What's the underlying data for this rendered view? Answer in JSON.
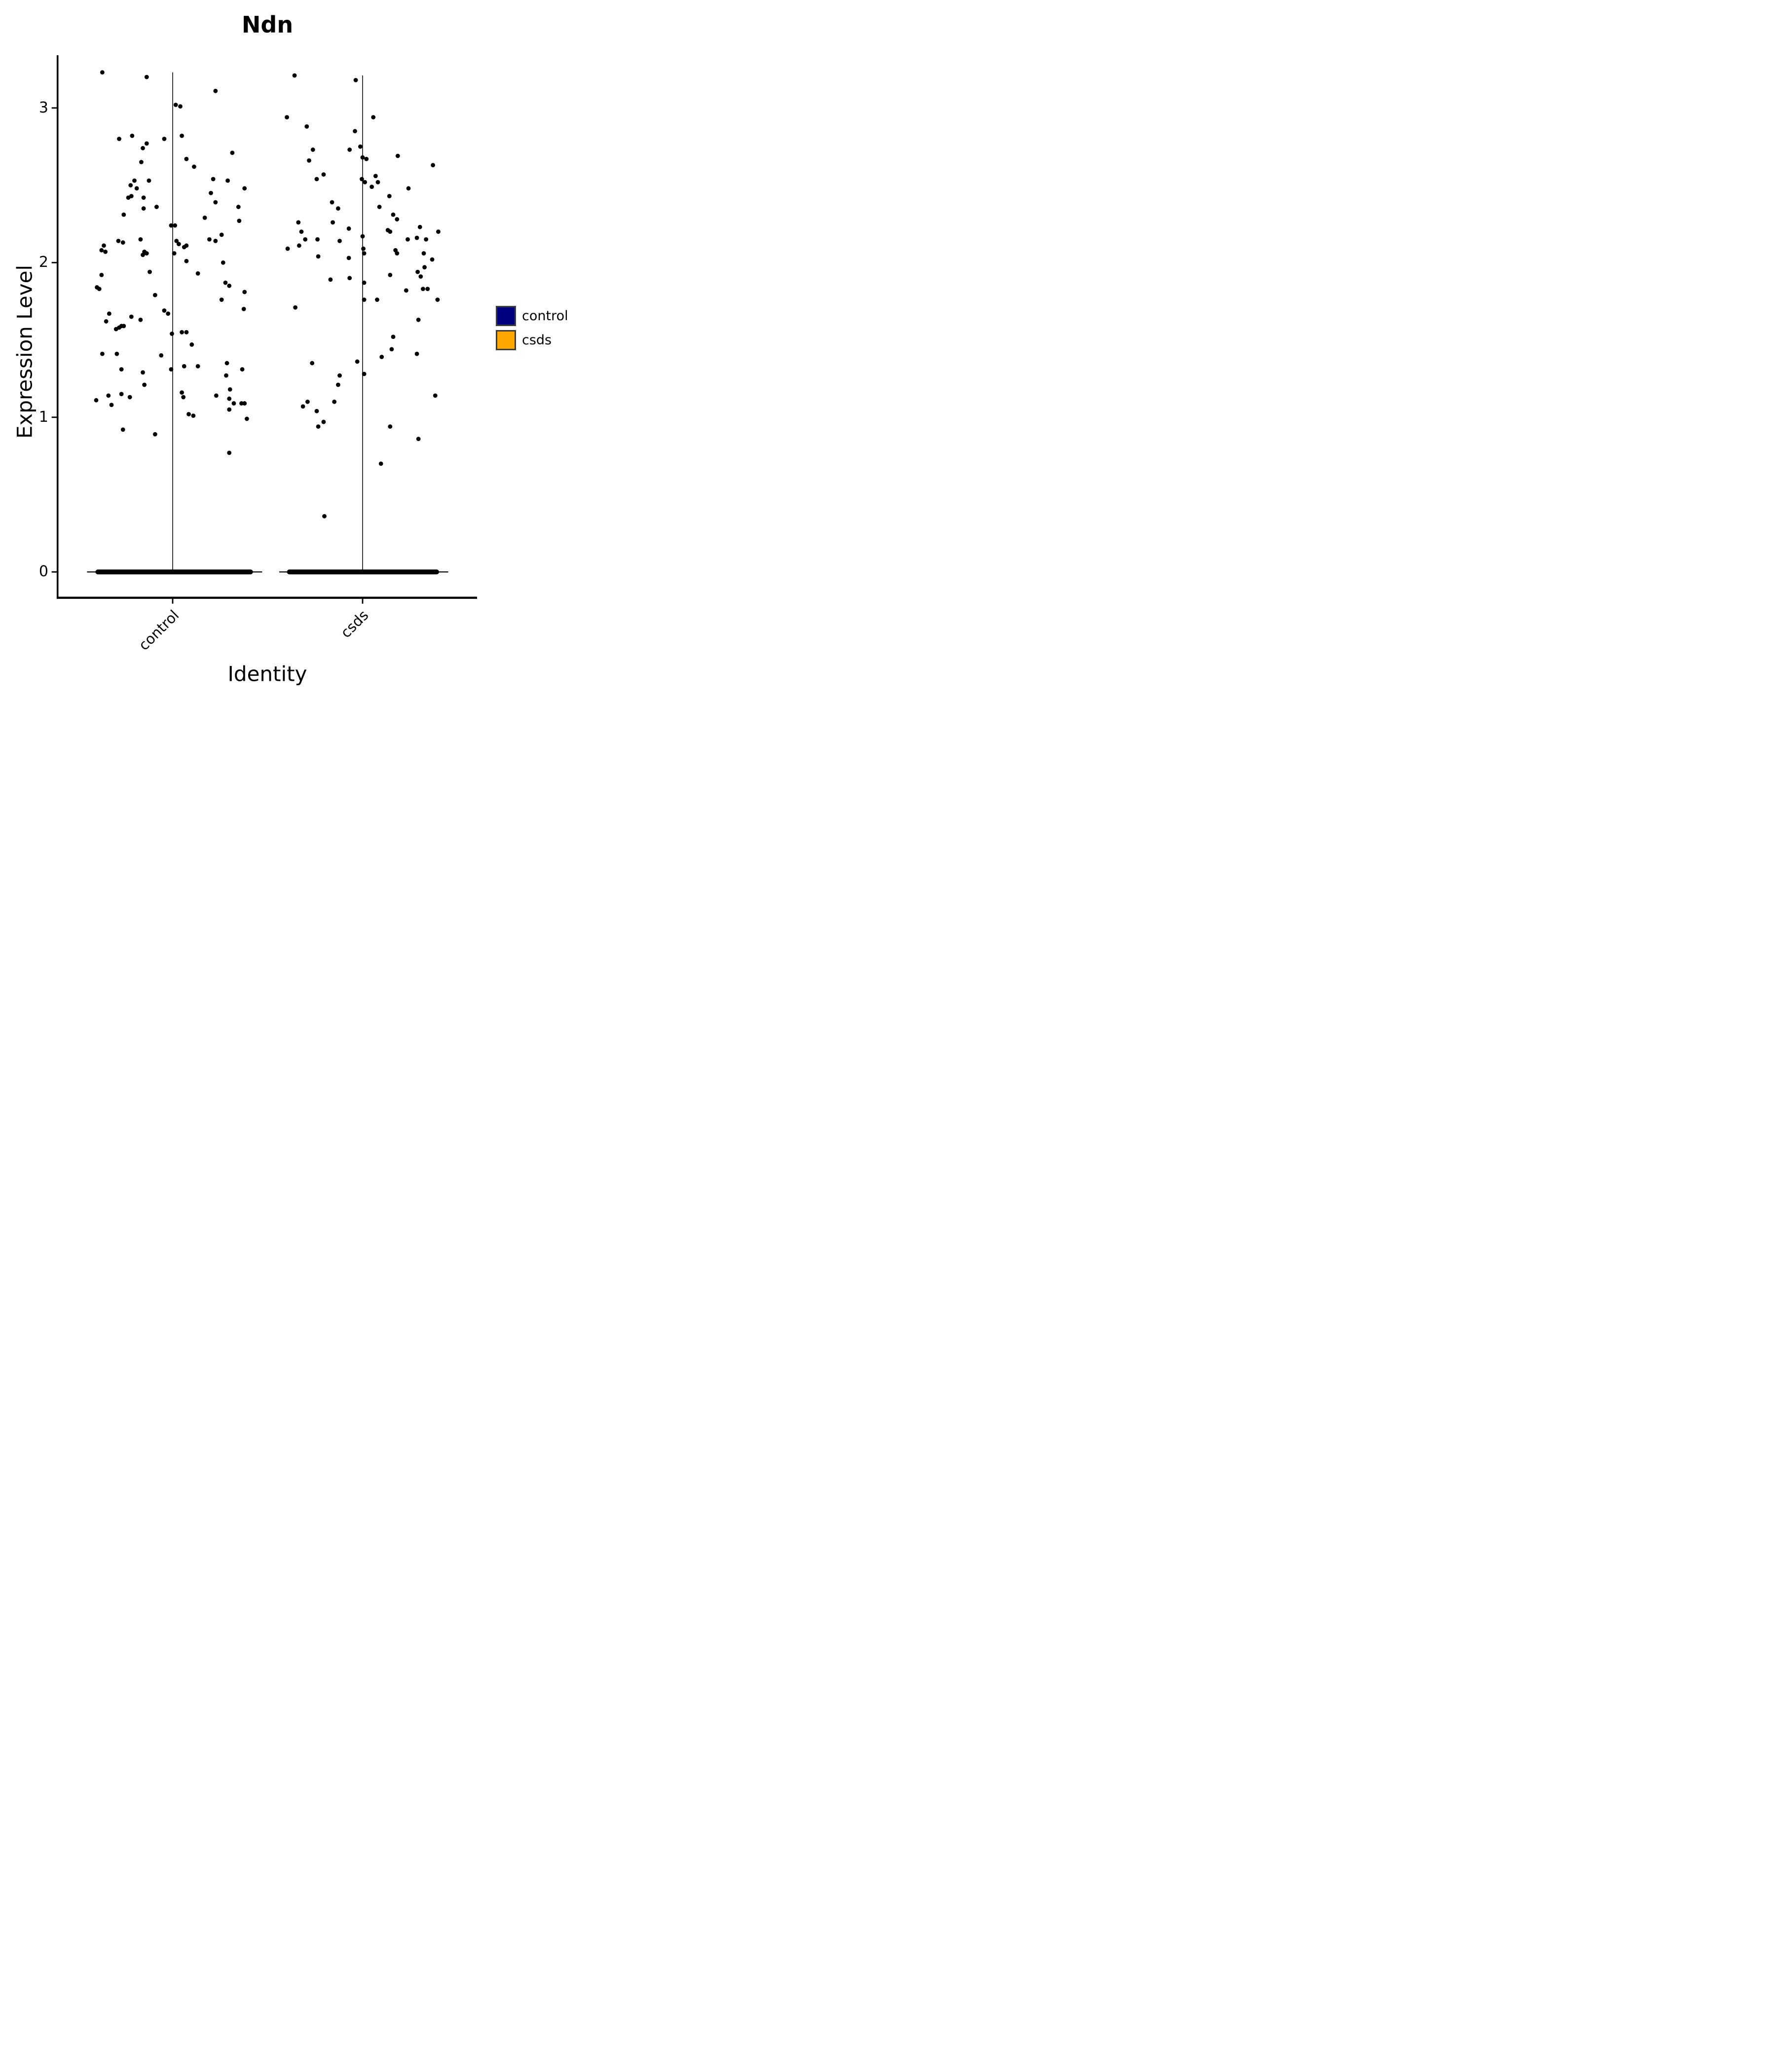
{
  "title": "Ndn",
  "y_axis": {
    "label": "Expression Level",
    "tick_labels": [
      "0",
      "1",
      "2",
      "3"
    ]
  },
  "x_axis": {
    "label": "Identity",
    "category_labels": [
      "control",
      "csds"
    ]
  },
  "legend": {
    "position": "right"
  },
  "chart_data": {
    "type": "scatter",
    "subtype": "violin-jitter",
    "title": "Ndn",
    "xlabel": "Identity",
    "ylabel": "Expression Level",
    "categories": [
      "control",
      "csds"
    ],
    "yticks": [
      0,
      1,
      2,
      3
    ],
    "ylim": [
      -0.17,
      3.45
    ],
    "grid": false,
    "point_color": "#000000",
    "legend": {
      "position": "right",
      "entries": [
        {
          "label": "control",
          "color": "#000080"
        },
        {
          "label": "csds",
          "color": "#FFA500"
        }
      ]
    },
    "series": [
      {
        "name": "control",
        "stem_top": 3.23,
        "zero_band": {
          "value": 0,
          "band_extent": [
            -1.01,
            1.05
          ],
          "line_extent": [
            -1.12,
            1.17
          ]
        },
        "points": [
          [
            -0.92,
            3.23
          ],
          [
            -0.34,
            3.2
          ],
          [
            0.56,
            3.11
          ],
          [
            0.04,
            3.02
          ],
          [
            0.1,
            3.01
          ],
          [
            -0.53,
            2.82
          ],
          [
            0.12,
            2.82
          ],
          [
            -0.7,
            2.8
          ],
          [
            -0.11,
            2.8
          ],
          [
            -0.34,
            2.77
          ],
          [
            -0.39,
            2.74
          ],
          [
            0.78,
            2.71
          ],
          [
            0.18,
            2.67
          ],
          [
            -0.41,
            2.65
          ],
          [
            0.28,
            2.62
          ],
          [
            0.53,
            2.54
          ],
          [
            0.72,
            2.53
          ],
          [
            -0.5,
            2.53
          ],
          [
            -0.31,
            2.53
          ],
          [
            -0.55,
            2.5
          ],
          [
            -0.47,
            2.48
          ],
          [
            0.94,
            2.48
          ],
          [
            0.5,
            2.45
          ],
          [
            -0.54,
            2.43
          ],
          [
            -0.58,
            2.42
          ],
          [
            -0.38,
            2.42
          ],
          [
            0.56,
            2.39
          ],
          [
            0.86,
            2.36
          ],
          [
            -0.21,
            2.36
          ],
          [
            -0.38,
            2.35
          ],
          [
            -0.64,
            2.31
          ],
          [
            0.42,
            2.29
          ],
          [
            0.87,
            2.27
          ],
          [
            -0.02,
            2.24
          ],
          [
            0.03,
            2.24
          ],
          [
            0.05,
            2.14
          ],
          [
            0.08,
            2.12
          ],
          [
            0.15,
            2.1
          ],
          [
            0.18,
            2.11
          ],
          [
            0.48,
            2.15
          ],
          [
            0.56,
            2.14
          ],
          [
            0.64,
            2.18
          ],
          [
            0.02,
            2.06
          ],
          [
            0.18,
            2.01
          ],
          [
            0.66,
            2.0
          ],
          [
            0.33,
            1.93
          ],
          [
            0.69,
            1.87
          ],
          [
            0.74,
            1.85
          ],
          [
            0.94,
            1.81
          ],
          [
            0.64,
            1.76
          ],
          [
            0.93,
            1.7
          ],
          [
            0.12,
            1.55
          ],
          [
            0.18,
            1.55
          ],
          [
            0.25,
            1.47
          ],
          [
            0.71,
            1.35
          ],
          [
            0.91,
            1.31
          ],
          [
            0.15,
            1.33
          ],
          [
            0.33,
            1.33
          ],
          [
            0.7,
            1.27
          ],
          [
            0.75,
            1.18
          ],
          [
            -0.9,
            2.11
          ],
          [
            -0.88,
            2.07
          ],
          [
            -0.93,
            2.08
          ],
          [
            -0.71,
            2.14
          ],
          [
            -0.65,
            2.13
          ],
          [
            -0.42,
            2.15
          ],
          [
            -0.37,
            2.07
          ],
          [
            -0.34,
            2.06
          ],
          [
            -0.39,
            2.05
          ],
          [
            -0.3,
            1.94
          ],
          [
            -0.93,
            1.92
          ],
          [
            -0.99,
            1.84
          ],
          [
            -0.96,
            1.83
          ],
          [
            -0.23,
            1.79
          ],
          [
            -0.83,
            1.67
          ],
          [
            -0.54,
            1.65
          ],
          [
            -0.42,
            1.63
          ],
          [
            -0.87,
            1.62
          ],
          [
            -0.74,
            1.57
          ],
          [
            -0.7,
            1.58
          ],
          [
            -0.67,
            1.59
          ],
          [
            -0.64,
            1.59
          ],
          [
            -0.11,
            1.69
          ],
          [
            -0.06,
            1.67
          ],
          [
            -0.01,
            1.54
          ],
          [
            -0.92,
            1.41
          ],
          [
            -0.73,
            1.41
          ],
          [
            -0.15,
            1.4
          ],
          [
            -0.67,
            1.31
          ],
          [
            -0.39,
            1.29
          ],
          [
            -0.02,
            1.31
          ],
          [
            -0.37,
            1.21
          ],
          [
            -1.0,
            1.11
          ],
          [
            -0.84,
            1.14
          ],
          [
            -0.8,
            1.08
          ],
          [
            -0.67,
            1.15
          ],
          [
            -0.56,
            1.13
          ],
          [
            -0.65,
            0.92
          ],
          [
            -0.23,
            0.89
          ],
          [
            0.12,
            1.16
          ],
          [
            0.14,
            1.13
          ],
          [
            0.57,
            1.14
          ],
          [
            0.74,
            1.12
          ],
          [
            0.8,
            1.09
          ],
          [
            0.9,
            1.09
          ],
          [
            0.94,
            1.09
          ],
          [
            0.74,
            1.05
          ],
          [
            0.21,
            1.02
          ],
          [
            0.27,
            1.01
          ],
          [
            0.97,
            0.99
          ],
          [
            0.74,
            0.77
          ]
        ]
      },
      {
        "name": "csds",
        "stem_top": 3.21,
        "zero_band": {
          "value": 0,
          "band_extent": [
            -0.99,
            1.0
          ],
          "line_extent": [
            -1.09,
            1.12
          ]
        },
        "points": [
          [
            -0.89,
            3.21
          ],
          [
            -0.09,
            3.18
          ],
          [
            0.14,
            2.94
          ],
          [
            -0.99,
            2.94
          ],
          [
            -0.73,
            2.88
          ],
          [
            -0.1,
            2.85
          ],
          [
            -0.03,
            2.75
          ],
          [
            -0.17,
            2.73
          ],
          [
            -0.65,
            2.73
          ],
          [
            0.0,
            2.68
          ],
          [
            0.05,
            2.67
          ],
          [
            -0.7,
            2.66
          ],
          [
            0.46,
            2.69
          ],
          [
            0.92,
            2.63
          ],
          [
            -0.51,
            2.57
          ],
          [
            -0.6,
            2.54
          ],
          [
            0.17,
            2.56
          ],
          [
            0.2,
            2.52
          ],
          [
            0.12,
            2.49
          ],
          [
            -0.01,
            2.54
          ],
          [
            0.03,
            2.52
          ],
          [
            0.6,
            2.48
          ],
          [
            0.35,
            2.43
          ],
          [
            -0.4,
            2.39
          ],
          [
            -0.32,
            2.35
          ],
          [
            0.22,
            2.36
          ],
          [
            0.4,
            2.31
          ],
          [
            0.45,
            2.28
          ],
          [
            -0.39,
            2.26
          ],
          [
            -0.84,
            2.26
          ],
          [
            -0.8,
            2.2
          ],
          [
            -0.18,
            2.22
          ],
          [
            0.75,
            2.23
          ],
          [
            0.33,
            2.21
          ],
          [
            0.36,
            2.2
          ],
          [
            -0.75,
            2.15
          ],
          [
            -0.59,
            2.15
          ],
          [
            -0.3,
            2.14
          ],
          [
            0.59,
            2.15
          ],
          [
            0.83,
            2.15
          ],
          [
            0.99,
            2.2
          ],
          [
            0.0,
            2.17
          ],
          [
            -0.83,
            2.11
          ],
          [
            -0.98,
            2.09
          ],
          [
            -0.58,
            2.04
          ],
          [
            -0.18,
            2.03
          ],
          [
            -0.42,
            1.89
          ],
          [
            -0.17,
            1.9
          ],
          [
            0.01,
            2.09
          ],
          [
            0.02,
            2.06
          ],
          [
            0.02,
            1.87
          ],
          [
            0.02,
            1.76
          ],
          [
            -0.88,
            1.71
          ],
          [
            -0.66,
            1.35
          ],
          [
            -0.07,
            1.36
          ],
          [
            -0.3,
            1.27
          ],
          [
            -0.32,
            1.21
          ],
          [
            0.02,
            1.28
          ],
          [
            0.43,
            2.08
          ],
          [
            0.45,
            2.06
          ],
          [
            0.71,
            2.16
          ],
          [
            0.8,
            2.06
          ],
          [
            0.91,
            2.02
          ],
          [
            0.81,
            1.97
          ],
          [
            0.72,
            1.94
          ],
          [
            0.76,
            1.91
          ],
          [
            0.36,
            1.92
          ],
          [
            0.79,
            1.83
          ],
          [
            0.85,
            1.83
          ],
          [
            0.57,
            1.82
          ],
          [
            0.98,
            1.76
          ],
          [
            0.19,
            1.76
          ],
          [
            0.73,
            1.63
          ],
          [
            0.4,
            1.52
          ],
          [
            0.38,
            1.44
          ],
          [
            0.25,
            1.39
          ],
          [
            0.71,
            1.41
          ],
          [
            0.95,
            1.14
          ],
          [
            -0.72,
            1.1
          ],
          [
            -0.78,
            1.07
          ],
          [
            -0.37,
            1.1
          ],
          [
            -0.6,
            1.04
          ],
          [
            -0.51,
            0.97
          ],
          [
            -0.58,
            0.94
          ],
          [
            -0.5,
            0.36
          ],
          [
            0.36,
            0.94
          ],
          [
            0.73,
            0.86
          ],
          [
            0.24,
            0.7
          ]
        ]
      }
    ]
  }
}
